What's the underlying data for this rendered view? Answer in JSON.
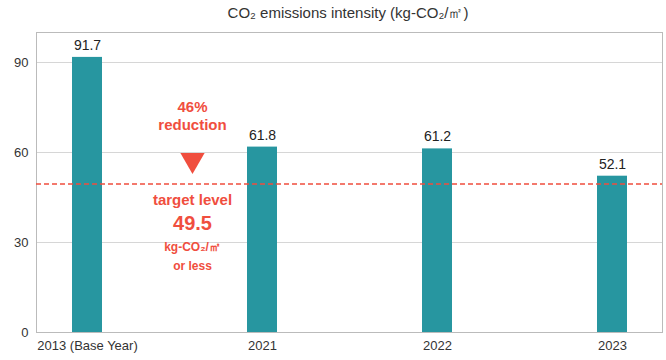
{
  "chart_data": {
    "type": "bar",
    "title": "CO₂ emissions intensity (kg-CO₂/㎡)",
    "categories": [
      "2013 (Base Year)",
      "2021",
      "2022",
      "2023"
    ],
    "values": [
      91.7,
      61.8,
      61.2,
      52.1
    ],
    "color": "#2796a0",
    "ylim": [
      0,
      100
    ],
    "yticks": [
      0,
      30,
      60,
      90
    ],
    "grid": true,
    "data_labels": true,
    "target": {
      "value": 49.5,
      "color": "#f04e3e",
      "label": "target level",
      "value_label": "49.5",
      "unit": "kg-CO₂/㎡",
      "note": "or less"
    },
    "annotation": {
      "lines": [
        "46%",
        "reduction"
      ]
    }
  }
}
